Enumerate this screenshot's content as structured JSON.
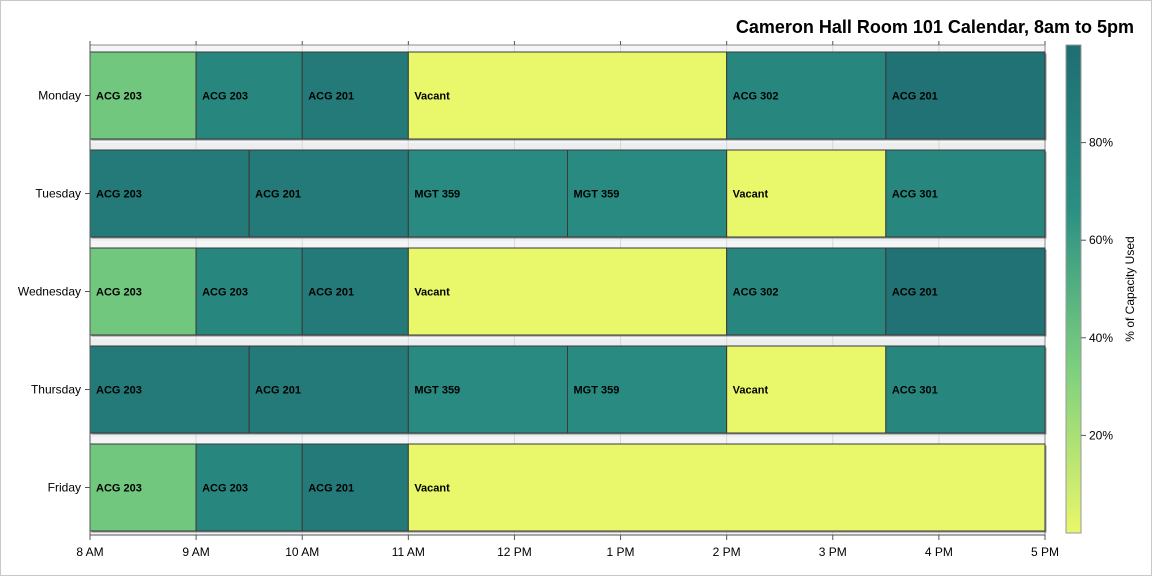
{
  "chart_data": {
    "type": "bar",
    "orientation": "horizontal",
    "title": "Cameron Hall Room 101 Calendar, 8am to 5pm",
    "x": {
      "range_hours": [
        8,
        17
      ],
      "tick_hours": [
        8,
        9,
        10,
        11,
        12,
        13,
        14,
        15,
        16,
        17
      ],
      "tick_labels": [
        "8 AM",
        "9 AM",
        "10 AM",
        "11 AM",
        "12 PM",
        "1 PM",
        "2 PM",
        "3 PM",
        "4 PM",
        "5 PM"
      ]
    },
    "categories": [
      "Monday",
      "Tuesday",
      "Wednesday",
      "Thursday",
      "Friday"
    ],
    "grid": true,
    "colorbar": {
      "title": "% of Capacity Used",
      "range": [
        0,
        100
      ],
      "ticks": [
        20,
        40,
        60,
        80
      ],
      "tick_labels": [
        "20%",
        "40%",
        "60%",
        "80%"
      ],
      "colors": [
        "#e9f76a",
        "#7ed07e",
        "#2a8f83",
        "#1f6e72"
      ]
    },
    "events": [
      {
        "day": "Monday",
        "start": 8,
        "end": 9,
        "label": "ACG 203",
        "capacity": 38
      },
      {
        "day": "Monday",
        "start": 9,
        "end": 10,
        "label": "ACG 203",
        "capacity": 75
      },
      {
        "day": "Monday",
        "start": 10,
        "end": 11,
        "label": "ACG 201",
        "capacity": 88
      },
      {
        "day": "Monday",
        "start": 11,
        "end": 14,
        "label": "Vacant",
        "capacity": 0
      },
      {
        "day": "Monday",
        "start": 14,
        "end": 15.5,
        "label": "ACG 302",
        "capacity": 75
      },
      {
        "day": "Monday",
        "start": 15.5,
        "end": 17,
        "label": "ACG 201",
        "capacity": 96
      },
      {
        "day": "Tuesday",
        "start": 8,
        "end": 9.5,
        "label": "ACG 203",
        "capacity": 88
      },
      {
        "day": "Tuesday",
        "start": 9.5,
        "end": 11,
        "label": "ACG 201",
        "capacity": 88
      },
      {
        "day": "Tuesday",
        "start": 11,
        "end": 12.5,
        "label": "MGT 359",
        "capacity": 72
      },
      {
        "day": "Tuesday",
        "start": 12.5,
        "end": 14,
        "label": "MGT 359",
        "capacity": 72
      },
      {
        "day": "Tuesday",
        "start": 14,
        "end": 15.5,
        "label": "Vacant",
        "capacity": 0
      },
      {
        "day": "Tuesday",
        "start": 15.5,
        "end": 17,
        "label": "ACG 301",
        "capacity": 75
      },
      {
        "day": "Wednesday",
        "start": 8,
        "end": 9,
        "label": "ACG 203",
        "capacity": 38
      },
      {
        "day": "Wednesday",
        "start": 9,
        "end": 10,
        "label": "ACG 203",
        "capacity": 75
      },
      {
        "day": "Wednesday",
        "start": 10,
        "end": 11,
        "label": "ACG 201",
        "capacity": 88
      },
      {
        "day": "Wednesday",
        "start": 11,
        "end": 14,
        "label": "Vacant",
        "capacity": 0
      },
      {
        "day": "Wednesday",
        "start": 14,
        "end": 15.5,
        "label": "ACG 302",
        "capacity": 75
      },
      {
        "day": "Wednesday",
        "start": 15.5,
        "end": 17,
        "label": "ACG 201",
        "capacity": 96
      },
      {
        "day": "Thursday",
        "start": 8,
        "end": 9.5,
        "label": "ACG 203",
        "capacity": 88
      },
      {
        "day": "Thursday",
        "start": 9.5,
        "end": 11,
        "label": "ACG 201",
        "capacity": 88
      },
      {
        "day": "Thursday",
        "start": 11,
        "end": 12.5,
        "label": "MGT 359",
        "capacity": 72
      },
      {
        "day": "Thursday",
        "start": 12.5,
        "end": 14,
        "label": "MGT 359",
        "capacity": 72
      },
      {
        "day": "Thursday",
        "start": 14,
        "end": 15.5,
        "label": "Vacant",
        "capacity": 0
      },
      {
        "day": "Thursday",
        "start": 15.5,
        "end": 17,
        "label": "ACG 301",
        "capacity": 75
      },
      {
        "day": "Friday",
        "start": 8,
        "end": 9,
        "label": "ACG 203",
        "capacity": 38
      },
      {
        "day": "Friday",
        "start": 9,
        "end": 10,
        "label": "ACG 203",
        "capacity": 75
      },
      {
        "day": "Friday",
        "start": 10,
        "end": 11,
        "label": "ACG 201",
        "capacity": 88
      },
      {
        "day": "Friday",
        "start": 11,
        "end": 17,
        "label": "Vacant",
        "capacity": 0
      }
    ]
  }
}
